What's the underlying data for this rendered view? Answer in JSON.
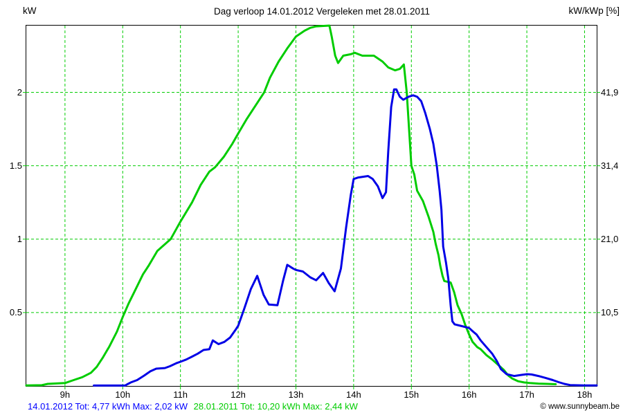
{
  "header": {
    "title": "Dag  verloop 14.01.2012   Vergeleken met 28.01.2011"
  },
  "footer": {
    "series_blue_summary": "14.01.2012 Tot: 4,77 kWh Max: 2,02 kW",
    "series_green_summary": "28.01.2011 Tot: 10,20 kWh Max: 2,44 kW",
    "credit": "© www.sunnybeam.be"
  },
  "colors": {
    "grid": "#00cc00",
    "tick": "#00cc00",
    "border": "#000000",
    "curve_blue": "#0000e6",
    "curve_green": "#00cc00",
    "footer_blue": "#0000ff",
    "footer_green": "#00cc00",
    "text": "#000000"
  },
  "chart_data": {
    "type": "line",
    "title": "Dag  verloop 14.01.2012   Vergeleken met 28.01.2011",
    "ylabel_left": "kW",
    "ylabel_right": "kW/kWp [%]",
    "grid": true,
    "grid_color": "#00cc00",
    "xlim": [
      8.33,
      18.21
    ],
    "ylim_left": [
      0,
      2.455
    ],
    "x_ticks": {
      "values": [
        9,
        10,
        11,
        12,
        13,
        14,
        15,
        16,
        17,
        18
      ],
      "labels": [
        "9h",
        "10h",
        "11h",
        "12h",
        "13h",
        "14h",
        "15h",
        "16h",
        "17h",
        "18h"
      ]
    },
    "y_ticks_left": {
      "values": [
        0.5,
        1,
        1.5,
        2
      ],
      "labels": [
        "0.5",
        "1",
        "1.5",
        "2"
      ]
    },
    "y_ticks_right": {
      "values": [
        0.5,
        1,
        1.5,
        2
      ],
      "labels": [
        "10,5",
        "21,0",
        "31,4",
        "41,9"
      ]
    },
    "series": [
      {
        "name": "28.01.2011",
        "color": "#00cc00",
        "total_kwh": "10,20",
        "max_kw": "2,44",
        "points": [
          [
            8.33,
            0.004
          ],
          [
            8.6,
            0.005
          ],
          [
            8.7,
            0.014
          ],
          [
            9.0,
            0.02
          ],
          [
            9.15,
            0.04
          ],
          [
            9.3,
            0.06
          ],
          [
            9.45,
            0.09
          ],
          [
            9.55,
            0.13
          ],
          [
            9.65,
            0.19
          ],
          [
            9.77,
            0.27
          ],
          [
            9.9,
            0.37
          ],
          [
            10.0,
            0.47
          ],
          [
            10.1,
            0.56
          ],
          [
            10.2,
            0.64
          ],
          [
            10.35,
            0.76
          ],
          [
            10.45,
            0.82
          ],
          [
            10.6,
            0.92
          ],
          [
            10.83,
            1.0
          ],
          [
            11.0,
            1.12
          ],
          [
            11.2,
            1.25
          ],
          [
            11.35,
            1.37
          ],
          [
            11.5,
            1.46
          ],
          [
            11.6,
            1.49
          ],
          [
            11.75,
            1.56
          ],
          [
            11.9,
            1.65
          ],
          [
            12.0,
            1.72
          ],
          [
            12.15,
            1.82
          ],
          [
            12.3,
            1.91
          ],
          [
            12.45,
            2.0
          ],
          [
            12.55,
            2.1
          ],
          [
            12.7,
            2.21
          ],
          [
            12.85,
            2.3
          ],
          [
            13.0,
            2.38
          ],
          [
            13.15,
            2.42
          ],
          [
            13.25,
            2.44
          ],
          [
            13.35,
            2.45
          ],
          [
            13.58,
            2.455
          ],
          [
            13.62,
            2.38
          ],
          [
            13.68,
            2.25
          ],
          [
            13.73,
            2.2
          ],
          [
            13.82,
            2.25
          ],
          [
            13.95,
            2.26
          ],
          [
            14.02,
            2.27
          ],
          [
            14.15,
            2.25
          ],
          [
            14.35,
            2.25
          ],
          [
            14.5,
            2.21
          ],
          [
            14.6,
            2.17
          ],
          [
            14.72,
            2.15
          ],
          [
            14.8,
            2.16
          ],
          [
            14.87,
            2.19
          ],
          [
            14.92,
            2.0
          ],
          [
            15.0,
            1.5
          ],
          [
            15.05,
            1.44
          ],
          [
            15.1,
            1.33
          ],
          [
            15.2,
            1.26
          ],
          [
            15.3,
            1.15
          ],
          [
            15.38,
            1.05
          ],
          [
            15.42,
            0.97
          ],
          [
            15.47,
            0.89
          ],
          [
            15.5,
            0.82
          ],
          [
            15.54,
            0.75
          ],
          [
            15.57,
            0.715
          ],
          [
            15.68,
            0.705
          ],
          [
            15.74,
            0.64
          ],
          [
            15.8,
            0.55
          ],
          [
            15.87,
            0.49
          ],
          [
            15.93,
            0.42
          ],
          [
            16.0,
            0.35
          ],
          [
            16.06,
            0.3
          ],
          [
            16.14,
            0.265
          ],
          [
            16.2,
            0.25
          ],
          [
            16.3,
            0.21
          ],
          [
            16.4,
            0.18
          ],
          [
            16.5,
            0.145
          ],
          [
            16.6,
            0.11
          ],
          [
            16.68,
            0.07
          ],
          [
            16.75,
            0.05
          ],
          [
            16.85,
            0.032
          ],
          [
            16.95,
            0.024
          ],
          [
            17.05,
            0.02
          ],
          [
            17.2,
            0.016
          ],
          [
            17.35,
            0.014
          ],
          [
            17.5,
            0.012
          ]
        ]
      },
      {
        "name": "14.01.2012",
        "color": "#0000e6",
        "total_kwh": "4,77",
        "max_kw": "2,02",
        "points": [
          [
            9.5,
            0.003
          ],
          [
            10.04,
            0.003
          ],
          [
            10.08,
            0.012
          ],
          [
            10.14,
            0.024
          ],
          [
            10.25,
            0.04
          ],
          [
            10.37,
            0.07
          ],
          [
            10.48,
            0.1
          ],
          [
            10.58,
            0.118
          ],
          [
            10.73,
            0.122
          ],
          [
            10.82,
            0.135
          ],
          [
            10.93,
            0.155
          ],
          [
            11.0,
            0.165
          ],
          [
            11.1,
            0.18
          ],
          [
            11.2,
            0.2
          ],
          [
            11.3,
            0.22
          ],
          [
            11.4,
            0.245
          ],
          [
            11.5,
            0.25
          ],
          [
            11.56,
            0.31
          ],
          [
            11.66,
            0.285
          ],
          [
            11.76,
            0.3
          ],
          [
            11.86,
            0.33
          ],
          [
            11.95,
            0.38
          ],
          [
            12.0,
            0.41
          ],
          [
            12.1,
            0.52
          ],
          [
            12.22,
            0.66
          ],
          [
            12.33,
            0.75
          ],
          [
            12.44,
            0.62
          ],
          [
            12.53,
            0.555
          ],
          [
            12.68,
            0.55
          ],
          [
            12.78,
            0.72
          ],
          [
            12.85,
            0.825
          ],
          [
            12.95,
            0.8
          ],
          [
            13.0,
            0.79
          ],
          [
            13.12,
            0.78
          ],
          [
            13.25,
            0.74
          ],
          [
            13.35,
            0.72
          ],
          [
            13.47,
            0.77
          ],
          [
            13.57,
            0.7
          ],
          [
            13.67,
            0.645
          ],
          [
            13.78,
            0.8
          ],
          [
            13.87,
            1.08
          ],
          [
            13.95,
            1.3
          ],
          [
            14.0,
            1.41
          ],
          [
            14.08,
            1.42
          ],
          [
            14.25,
            1.43
          ],
          [
            14.33,
            1.41
          ],
          [
            14.42,
            1.36
          ],
          [
            14.5,
            1.28
          ],
          [
            14.56,
            1.32
          ],
          [
            14.6,
            1.6
          ],
          [
            14.65,
            1.9
          ],
          [
            14.7,
            2.02
          ],
          [
            14.74,
            2.02
          ],
          [
            14.8,
            1.97
          ],
          [
            14.86,
            1.95
          ],
          [
            14.95,
            1.97
          ],
          [
            15.03,
            1.98
          ],
          [
            15.1,
            1.97
          ],
          [
            15.17,
            1.94
          ],
          [
            15.24,
            1.86
          ],
          [
            15.32,
            1.75
          ],
          [
            15.38,
            1.65
          ],
          [
            15.44,
            1.5
          ],
          [
            15.49,
            1.33
          ],
          [
            15.52,
            1.2
          ],
          [
            15.55,
            0.95
          ],
          [
            15.6,
            0.84
          ],
          [
            15.64,
            0.73
          ],
          [
            15.68,
            0.55
          ],
          [
            15.71,
            0.44
          ],
          [
            15.75,
            0.42
          ],
          [
            15.85,
            0.41
          ],
          [
            16.0,
            0.395
          ],
          [
            16.07,
            0.37
          ],
          [
            16.13,
            0.35
          ],
          [
            16.2,
            0.31
          ],
          [
            16.3,
            0.265
          ],
          [
            16.4,
            0.22
          ],
          [
            16.48,
            0.17
          ],
          [
            16.55,
            0.115
          ],
          [
            16.65,
            0.08
          ],
          [
            16.78,
            0.068
          ],
          [
            16.9,
            0.075
          ],
          [
            17.0,
            0.08
          ],
          [
            17.08,
            0.078
          ],
          [
            17.2,
            0.068
          ],
          [
            17.32,
            0.055
          ],
          [
            17.45,
            0.04
          ],
          [
            17.55,
            0.026
          ],
          [
            17.65,
            0.014
          ],
          [
            17.75,
            0.006
          ],
          [
            18.0,
            0.004
          ],
          [
            18.21,
            0.004
          ]
        ]
      }
    ]
  }
}
